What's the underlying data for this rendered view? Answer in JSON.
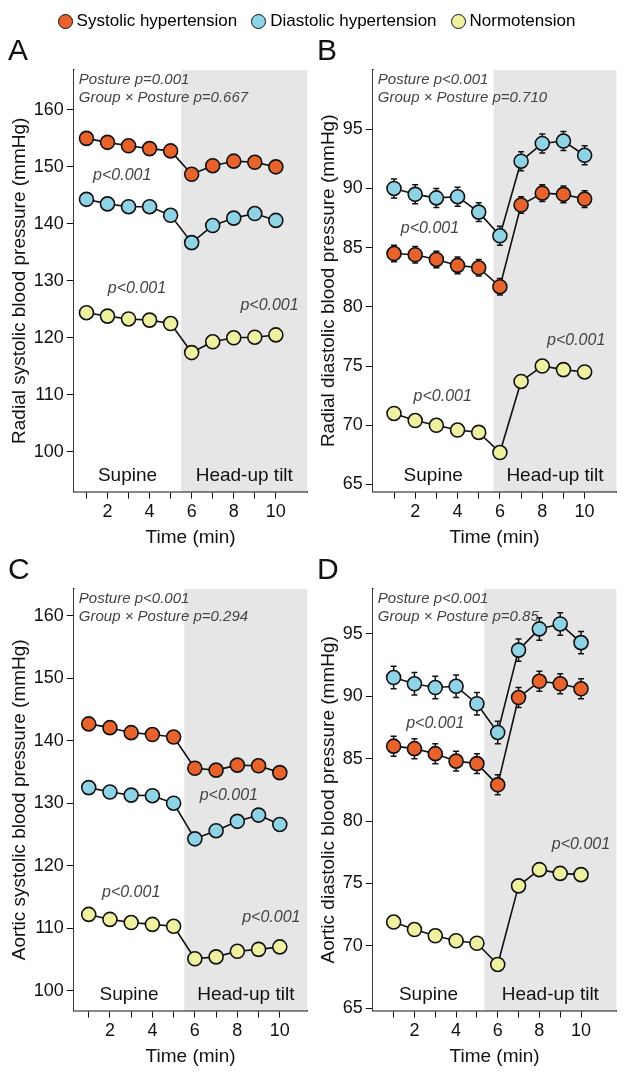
{
  "chart_data": [
    {
      "type": "line",
      "title": "A",
      "xlabel": "Time (min)",
      "ylabel": "Radial systolic blood pressure (mmHg)",
      "legend": "top",
      "marker": "circle",
      "x": [
        1,
        2,
        3,
        4,
        5,
        6,
        7,
        8,
        9,
        10
      ],
      "xlim": [
        0.4,
        11.5
      ],
      "xticks": [
        {
          "value": 1,
          "label": null
        },
        2,
        {
          "value": 3,
          "label": null
        },
        4,
        {
          "value": 5,
          "label": null
        },
        6,
        {
          "value": 7,
          "label": null
        },
        8,
        {
          "value": 9,
          "label": null
        },
        10
      ],
      "ylim": [
        93,
        167
      ],
      "yticks": [
        100,
        110,
        120,
        130,
        140,
        150,
        160
      ],
      "series": [
        {
          "name": "Systolic hypertension",
          "color": "#e8632b",
          "values": [
            155,
            154.3,
            153.7,
            153.2,
            152.8,
            148.7,
            150.2,
            151,
            150.8,
            150
          ]
        },
        {
          "name": "Diastolic hypertension",
          "color": "#8fd3e6",
          "values": [
            144.3,
            143.5,
            143,
            143,
            141.5,
            136.7,
            139.7,
            141,
            141.8,
            140.6
          ]
        },
        {
          "name": "Normotension",
          "color": "#eef2a0",
          "values": [
            124.4,
            123.8,
            123.3,
            123.1,
            122.5,
            117.4,
            119.3,
            120,
            120.1,
            120.5
          ]
        }
      ],
      "bands": [
        {
          "axis": "x",
          "from": 0.4,
          "to": 5.5,
          "label": "Supine",
          "color": "#ffffff"
        },
        {
          "axis": "x",
          "from": 5.5,
          "to": 11.5,
          "label": "Head-up tilt",
          "color": "#e6e6e6"
        }
      ],
      "annotations": [
        "Posture p=0.001",
        "Group × Posture p=0.667",
        {
          "text": "p<0.001",
          "x": 2.7,
          "y": 143.15
        },
        {
          "text": "p<0.001",
          "x": 3.4,
          "y": 123.3
        },
        {
          "text": "p<0.001",
          "x": 9.7,
          "y": 120.4
        }
      ]
    },
    {
      "type": "line",
      "title": "B",
      "xlabel": "Time (min)",
      "ylabel": "Radial diastolic blood pressure (mmHg)",
      "marker": "circle",
      "x": [
        1,
        2,
        3,
        4,
        5,
        6,
        7,
        8,
        9,
        10
      ],
      "xlim": [
        0,
        11.5
      ],
      "xticks": [
        {
          "value": 1,
          "label": null
        },
        2,
        {
          "value": 3,
          "label": null
        },
        4,
        {
          "value": 5,
          "label": null
        },
        6,
        {
          "value": 7,
          "label": null
        },
        8,
        {
          "value": 9,
          "label": null
        },
        10
      ],
      "ylim": [
        64.4,
        100
      ],
      "yticks": [
        65,
        70,
        75,
        80,
        85,
        90,
        95
      ],
      "series": [
        {
          "color": "#8fd3e6",
          "values": [
            90,
            89.5,
            89.2,
            89.3,
            88,
            86,
            92.3,
            93.8,
            94,
            92.8
          ],
          "errors": [
            0.8,
            0.8,
            0.8,
            0.8,
            0.8,
            0.8,
            0.8,
            0.8,
            0.8,
            0.8
          ]
        },
        {
          "color": "#e8632b",
          "values": [
            84.5,
            84.4,
            84,
            83.5,
            83.3,
            81.7,
            88.6,
            89.6,
            89.5,
            89.1
          ],
          "errors": [
            0.7,
            0.7,
            0.7,
            0.7,
            0.7,
            0.7,
            0.7,
            0.7,
            0.7,
            0.7
          ]
        },
        {
          "color": "#eef2a0",
          "values": [
            71,
            70.4,
            70,
            69.6,
            69.4,
            67.7,
            73.7,
            75,
            74.7,
            74.5
          ]
        }
      ],
      "bands": [
        {
          "axis": "x",
          "from": 0,
          "to": 5.7,
          "label": "Supine",
          "color": "#ffffff"
        },
        {
          "axis": "x",
          "from": 5.7,
          "to": 11.5,
          "label": "Head-up tilt",
          "color": "#e6e6e6"
        }
      ],
      "annotations": [
        "Posture p<0.001",
        "Group × Posture p=0.710",
        {
          "text": "p<0.001",
          "x": 2.7,
          "y": 84.12
        },
        {
          "text": "p<0.001",
          "x": 3.3,
          "y": 69.88
        },
        {
          "text": "p<0.001",
          "x": 9.6,
          "y": 74.58
        }
      ]
    },
    {
      "type": "line",
      "title": "C",
      "xlabel": "Time (min)",
      "ylabel": "Aortic systolic blood pressure (mmHg)",
      "marker": "circle",
      "x": [
        1,
        2,
        3,
        4,
        5,
        6,
        7,
        8,
        9,
        10
      ],
      "xlim": [
        0.3,
        11.3
      ],
      "xticks": [
        {
          "value": 1,
          "label": null
        },
        2,
        {
          "value": 3,
          "label": null
        },
        4,
        {
          "value": 5,
          "label": null
        },
        6,
        {
          "value": 7,
          "label": null
        },
        8,
        {
          "value": 9,
          "label": null
        },
        10
      ],
      "ylim": [
        96.8,
        164.3
      ],
      "yticks": [
        100,
        110,
        120,
        130,
        140,
        150,
        160
      ],
      "series": [
        {
          "color": "#e8632b",
          "values": [
            142.7,
            142.1,
            141.3,
            141,
            140.6,
            135.6,
            135.3,
            136.1,
            136,
            134.9
          ]
        },
        {
          "color": "#8fd3e6",
          "values": [
            132.5,
            131.8,
            131.3,
            131.2,
            130,
            124.3,
            125.6,
            127.1,
            128.1,
            126.6
          ]
        },
        {
          "color": "#eef2a0",
          "values": [
            112.2,
            111.4,
            110.9,
            110.6,
            110.3,
            105.1,
            105.4,
            106.3,
            106.6,
            107
          ]
        }
      ],
      "bands": [
        {
          "axis": "x",
          "from": 0.3,
          "to": 5.5,
          "label": "Supine",
          "color": "#ffffff"
        },
        {
          "axis": "x",
          "from": 5.5,
          "to": 11.3,
          "label": "Head-up tilt",
          "color": "#e6e6e6"
        }
      ],
      "annotations": [
        "Posture p<0.001",
        "Group × Posture p=0.294",
        {
          "text": "p<0.001",
          "x": 7.6,
          "y": 126.5
        },
        {
          "text": "p<0.001",
          "x": 3,
          "y": 110.9
        },
        {
          "text": "p<0.001",
          "x": 9.6,
          "y": 106.84
        }
      ]
    },
    {
      "type": "line",
      "title": "D",
      "xlabel": "Time (min)",
      "ylabel": "Aortic diastolic blood pressure (mmHg)",
      "marker": "circle",
      "x": [
        1,
        2,
        3,
        4,
        5,
        6,
        7,
        8,
        9,
        10
      ],
      "xlim": [
        0,
        11.7
      ],
      "xticks": [
        {
          "value": 1,
          "label": null
        },
        2,
        {
          "value": 3,
          "label": null
        },
        4,
        {
          "value": 5,
          "label": null
        },
        6,
        {
          "value": 7,
          "label": null
        },
        8,
        {
          "value": 9,
          "label": null
        },
        10
      ],
      "ylim": [
        64.8,
        98.6
      ],
      "yticks": [
        65,
        70,
        75,
        80,
        85,
        90,
        95
      ],
      "series": [
        {
          "color": "#8fd3e6",
          "values": [
            91.5,
            91,
            90.7,
            90.8,
            89.4,
            87.1,
            93.7,
            95.4,
            95.8,
            94.3
          ],
          "errors": [
            0.9,
            0.9,
            0.9,
            0.9,
            0.9,
            0.9,
            0.9,
            0.9,
            0.9,
            0.9
          ]
        },
        {
          "color": "#e8632b",
          "values": [
            86,
            85.8,
            85.4,
            84.8,
            84.6,
            82.9,
            89.9,
            91.2,
            91,
            90.6
          ],
          "errors": [
            0.8,
            0.8,
            0.8,
            0.8,
            0.8,
            0.8,
            0.8,
            0.8,
            0.8,
            0.8
          ]
        },
        {
          "color": "#eef2a0",
          "values": [
            71.9,
            71.3,
            70.8,
            70.4,
            70.2,
            68.5,
            74.8,
            76.1,
            75.8,
            75.7
          ]
        }
      ],
      "bands": [
        {
          "axis": "x",
          "from": 0,
          "to": 5.35,
          "label": "Supine",
          "color": "#ffffff"
        },
        {
          "axis": "x",
          "from": 5.35,
          "to": 11.7,
          "label": "Head-up tilt",
          "color": "#e6e6e6"
        }
      ],
      "annotations": [
        "Posture p<0.001",
        "Group × Posture p=0.85",
        {
          "text": "p<0.001",
          "x": 3,
          "y": 85.4
        },
        {
          "text": "p<0.001",
          "x": 10,
          "y": 75.7
        }
      ]
    }
  ]
}
